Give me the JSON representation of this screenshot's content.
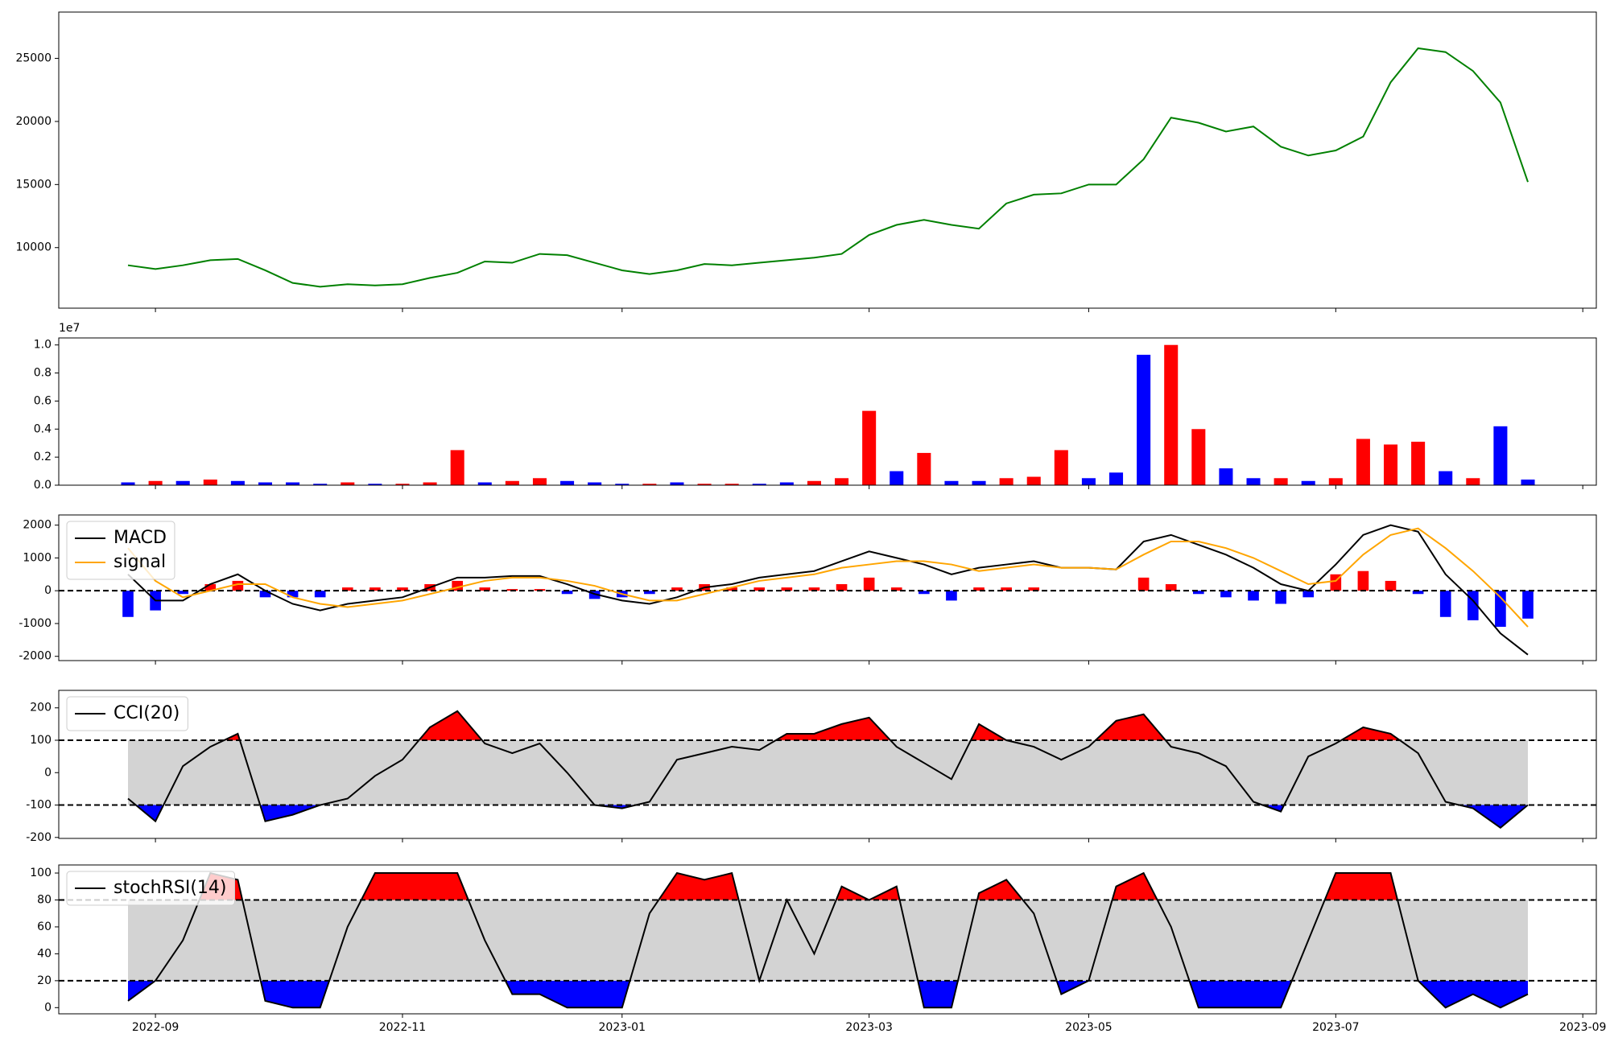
{
  "chart_data": [
    {
      "type": "line",
      "series": [
        {
          "color": "#008000",
          "values": [
            8600,
            8300,
            8600,
            9000,
            9100,
            8200,
            7200,
            6900,
            7100,
            7000,
            7100,
            7600,
            8000,
            8900,
            8800,
            9500,
            9400,
            8800,
            8200,
            7900,
            8200,
            8700,
            8600,
            8800,
            9000,
            9200,
            9500,
            11000,
            11800,
            12200,
            11800,
            11500,
            13500,
            14200,
            14300,
            15000,
            15000,
            17000,
            20300,
            19900,
            19200,
            19600,
            18000,
            17300,
            17700,
            18800,
            23100,
            25800,
            25500,
            24000,
            21500,
            15200,
            null,
            null
          ]
        }
      ],
      "ylim": [
        5200,
        28670
      ],
      "yticks": [
        10000,
        15000,
        20000,
        25000
      ]
    },
    {
      "type": "bar",
      "offset_label": "1e7",
      "values": [
        0.02,
        0.03,
        0.03,
        0.04,
        0.03,
        0.02,
        0.02,
        0.01,
        0.02,
        0.01,
        0.01,
        0.02,
        0.25,
        0.02,
        0.03,
        0.05,
        0.03,
        0.02,
        0.01,
        0.01,
        0.02,
        0.01,
        0.01,
        0.01,
        0.02,
        0.03,
        0.05,
        0.53,
        0.1,
        0.23,
        0.03,
        0.03,
        0.05,
        0.06,
        0.25,
        0.05,
        0.09,
        0.93,
        1.0,
        0.4,
        0.12,
        0.05,
        0.05,
        0.03,
        0.05,
        0.33,
        0.29,
        0.31,
        0.1,
        0.05,
        0.42,
        0.04,
        null,
        null
      ],
      "colors": [
        "#0000ff",
        "#ff0000",
        "#0000ff",
        "#ff0000",
        "#0000ff",
        "#0000ff",
        "#0000ff",
        "#0000ff",
        "#ff0000",
        "#0000ff",
        "#ff0000",
        "#ff0000",
        "#ff0000",
        "#0000ff",
        "#ff0000",
        "#ff0000",
        "#0000ff",
        "#0000ff",
        "#0000ff",
        "#ff0000",
        "#0000ff",
        "#ff0000",
        "#ff0000",
        "#0000ff",
        "#0000ff",
        "#ff0000",
        "#ff0000",
        "#ff0000",
        "#0000ff",
        "#ff0000",
        "#0000ff",
        "#0000ff",
        "#ff0000",
        "#ff0000",
        "#ff0000",
        "#0000ff",
        "#0000ff",
        "#0000ff",
        "#ff0000",
        "#ff0000",
        "#0000ff",
        "#0000ff",
        "#ff0000",
        "#0000ff",
        "#ff0000",
        "#ff0000",
        "#ff0000",
        "#ff0000",
        "#0000ff",
        "#ff0000",
        "#0000ff",
        "#0000ff",
        null,
        null
      ],
      "ylim": [
        0,
        1.05
      ],
      "yticks": [
        {
          "value": 0,
          "label": "0.0"
        },
        {
          "value": 0.2,
          "label": "0.2"
        },
        {
          "value": 0.4,
          "label": "0.4"
        },
        {
          "value": 0.6,
          "label": "0.6"
        },
        {
          "value": 0.8,
          "label": "0.8"
        },
        {
          "value": 1,
          "label": "1.0"
        }
      ]
    },
    {
      "type": "line",
      "series": [
        {
          "name": "MACD",
          "color": "#000000",
          "values": [
            500,
            -300,
            -300,
            200,
            500,
            0,
            -400,
            -600,
            -400,
            -300,
            -200,
            100,
            400,
            400,
            450,
            450,
            200,
            -100,
            -300,
            -400,
            -200,
            100,
            200,
            400,
            500,
            600,
            900,
            1200,
            1000,
            800,
            500,
            700,
            800,
            900,
            700,
            700,
            650,
            1500,
            1700,
            1400,
            1100,
            700,
            200,
            0,
            800,
            1700,
            2000,
            1800,
            500,
            -300,
            -1300,
            -1950,
            null,
            null
          ]
        },
        {
          "name": "signal",
          "color": "#ffa500",
          "values": [
            1300,
            300,
            -200,
            0,
            200,
            200,
            -200,
            -400,
            -500,
            -400,
            -300,
            -100,
            100,
            300,
            400,
            400,
            300,
            150,
            -100,
            -300,
            -300,
            -100,
            100,
            300,
            400,
            500,
            700,
            800,
            900,
            900,
            800,
            600,
            700,
            800,
            700,
            700,
            650,
            1100,
            1500,
            1500,
            1300,
            1000,
            600,
            200,
            300,
            1100,
            1700,
            1900,
            1300,
            600,
            -200,
            -1100,
            null,
            null
          ]
        }
      ],
      "bars": {
        "color": "#ff0000",
        "negative_color": "#0000ff",
        "values": [
          -800,
          -600,
          -100,
          200,
          300,
          -200,
          -200,
          -200,
          100,
          100,
          100,
          200,
          300,
          100,
          50,
          50,
          -100,
          -250,
          -200,
          -100,
          100,
          200,
          100,
          100,
          100,
          100,
          200,
          400,
          100,
          -100,
          -300,
          100,
          100,
          100,
          0,
          0,
          0,
          400,
          200,
          -100,
          -200,
          -300,
          -400,
          -200,
          500,
          600,
          300,
          -100,
          -800,
          -900,
          -1100,
          -850,
          null,
          null
        ]
      },
      "hlines": [
        0
      ],
      "legend": "upper left",
      "ylim": [
        -2130,
        2310
      ],
      "yticks": [
        -2000,
        -1000,
        0,
        1000,
        2000
      ]
    },
    {
      "type": "line",
      "series": [
        {
          "name": "CCI(20)",
          "color": "#000000",
          "values": [
            -80,
            -150,
            20,
            80,
            120,
            -150,
            -130,
            -100,
            -80,
            -10,
            40,
            140,
            190,
            90,
            60,
            90,
            0,
            -100,
            -110,
            -90,
            40,
            60,
            80,
            70,
            120,
            120,
            150,
            170,
            80,
            30,
            -20,
            150,
            100,
            80,
            40,
            80,
            160,
            180,
            80,
            60,
            20,
            -90,
            -120,
            50,
            90,
            140,
            120,
            60,
            -90,
            -110,
            -170,
            -100,
            null,
            null
          ]
        }
      ],
      "hlines": [
        100,
        -100
      ],
      "fill": {
        "above": "#ff0000",
        "below": "#0000ff",
        "between": "#d3d3d3"
      },
      "legend": "upper left",
      "ylim": [
        -203,
        254
      ],
      "yticks": [
        -200,
        -100,
        0,
        100,
        200
      ]
    },
    {
      "type": "line",
      "series": [
        {
          "name": "stochRSI(14)",
          "color": "#000000",
          "values": [
            5,
            20,
            50,
            100,
            95,
            5,
            0,
            0,
            60,
            100,
            100,
            100,
            100,
            50,
            10,
            10,
            0,
            0,
            0,
            70,
            100,
            95,
            100,
            20,
            80,
            40,
            90,
            80,
            90,
            0,
            0,
            85,
            95,
            70,
            10,
            20,
            90,
            100,
            60,
            0,
            0,
            0,
            0,
            50,
            100,
            100,
            100,
            20,
            0,
            10,
            0,
            10,
            null,
            null
          ]
        }
      ],
      "hlines": [
        80,
        20
      ],
      "fill": {
        "above": "#ff0000",
        "below": "#0000ff",
        "between": "#d3d3d3"
      },
      "legend": "upper left",
      "categories": [
        null,
        "2022-09",
        null,
        null,
        null,
        null,
        null,
        null,
        null,
        null,
        "2022-11",
        null,
        null,
        null,
        null,
        null,
        null,
        null,
        "2023-01",
        null,
        null,
        null,
        null,
        null,
        null,
        null,
        null,
        "2023-03",
        null,
        null,
        null,
        null,
        null,
        null,
        null,
        "2023-05",
        null,
        null,
        null,
        null,
        null,
        null,
        null,
        null,
        "2023-07",
        null,
        null,
        null,
        null,
        null,
        null,
        null,
        null,
        "2023-09"
      ],
      "ylim": [
        -4.6,
        106
      ],
      "yticks": [
        0,
        20,
        40,
        60,
        80,
        100
      ]
    }
  ]
}
